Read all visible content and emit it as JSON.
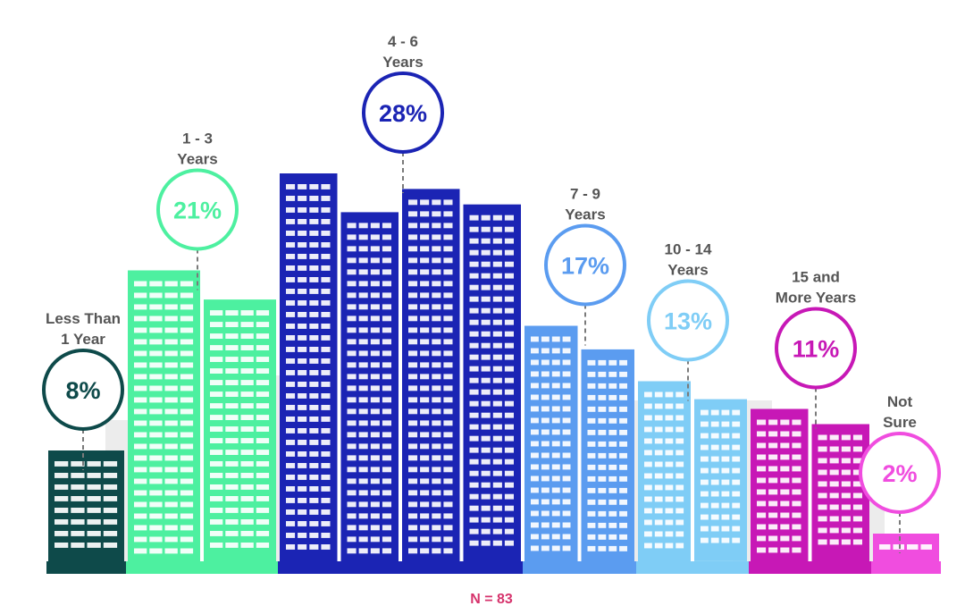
{
  "chart_data": {
    "type": "bar",
    "categories": [
      "Less Than 1 Year",
      "1 - 3 Years",
      "4 - 6 Years",
      "7 - 9 Years",
      "10 - 14 Years",
      "15 and More Years",
      "Not Sure"
    ],
    "category_lines": [
      [
        "Less Than",
        "1 Year"
      ],
      [
        "1 - 3",
        "Years"
      ],
      [
        "4 - 6",
        "Years"
      ],
      [
        "7 - 9",
        "Years"
      ],
      [
        "10 - 14",
        "Years"
      ],
      [
        "15 and",
        "More Years"
      ],
      [
        "Not",
        "Sure"
      ]
    ],
    "values": [
      8,
      21,
      28,
      17,
      13,
      11,
      2
    ],
    "value_labels": [
      "8%",
      "21%",
      "28%",
      "17%",
      "13%",
      "11%",
      "2%"
    ],
    "unit": "%",
    "colors": [
      "#0e4a4a",
      "#4df0a0",
      "#1b24b4",
      "#5b9cf0",
      "#7fcdf6",
      "#c718b6",
      "#f04ddf"
    ],
    "label_colors": [
      "#0e4a4a",
      "#4df0a0",
      "#1b24b4",
      "#5b9cf0",
      "#7fcdf6",
      "#c718b6",
      "#f04ddf"
    ],
    "note": "N = 83",
    "title": "",
    "xlabel": "",
    "ylabel": ""
  }
}
